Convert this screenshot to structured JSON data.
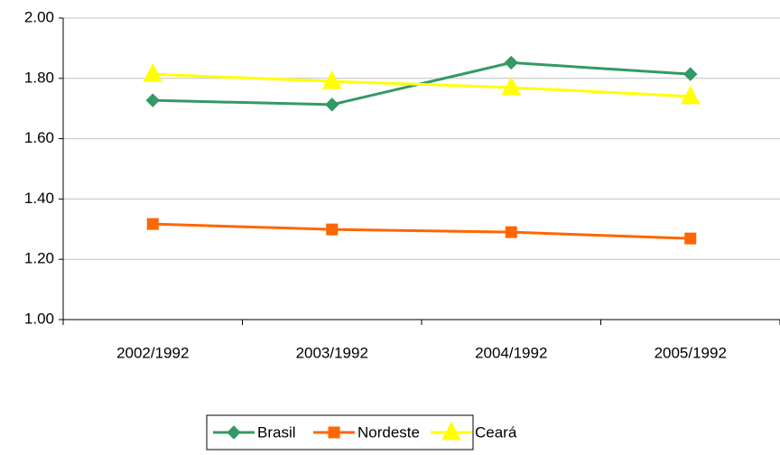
{
  "chart_data": {
    "type": "line",
    "categories": [
      "2002/1992",
      "2003/1992",
      "2004/1992",
      "2005/1992"
    ],
    "series": [
      {
        "name": "Brasil",
        "color": "#339966",
        "marker": "diamond",
        "values": [
          1.727,
          1.713,
          1.852,
          1.814
        ]
      },
      {
        "name": "Nordeste",
        "color": "#ff6600",
        "marker": "square",
        "values": [
          1.317,
          1.299,
          1.29,
          1.269
        ]
      },
      {
        "name": "Ceará",
        "color": "#ffff00",
        "marker": "triangle",
        "values": [
          1.814,
          1.79,
          1.77,
          1.74
        ]
      }
    ],
    "ylim": [
      1,
      2
    ],
    "yticks": [
      {
        "value": 1,
        "label": "1.00"
      },
      {
        "value": 1.2,
        "label": "1.20"
      },
      {
        "value": 1.4,
        "label": "1.40"
      },
      {
        "value": 1.6,
        "label": "1.60"
      },
      {
        "value": 1.8,
        "label": "1.80"
      },
      {
        "value": 2,
        "label": "2.00"
      }
    ],
    "grid": true,
    "legend": "bottom"
  }
}
